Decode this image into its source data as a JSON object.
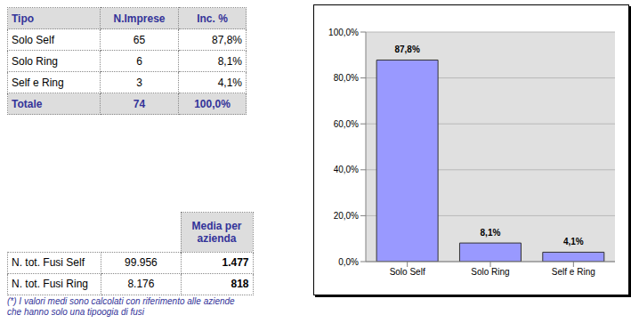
{
  "chart_data": {
    "type": "bar",
    "categories": [
      "Solo Self",
      "Solo Ring",
      "Self e Ring"
    ],
    "values": [
      87.8,
      8.1,
      4.1
    ],
    "value_labels": [
      "87,8%",
      "8,1%",
      "4,1%"
    ],
    "color": "#9999ff",
    "ylim": [
      0,
      100
    ],
    "yticks": [
      {
        "value": 0,
        "label": "0,0%"
      },
      {
        "value": 20,
        "label": "20,0%"
      },
      {
        "value": 40,
        "label": "40,0%"
      },
      {
        "value": 60,
        "label": "60,0%"
      },
      {
        "value": 80,
        "label": "80,0%"
      },
      {
        "value": 100,
        "label": "100,0%"
      }
    ],
    "grid": true,
    "data_labels": true
  },
  "table_imprese": {
    "header": [
      "Tipo",
      "N.Imprese",
      "Inc. %"
    ],
    "rows": [
      [
        "Solo Self",
        "65",
        "87,8%"
      ],
      [
        "Solo Ring",
        "6",
        "8,1%"
      ],
      [
        "Self e Ring",
        "3",
        "4,1%"
      ]
    ],
    "total": [
      "Totale",
      "74",
      "100,0%"
    ]
  },
  "table_fusi": {
    "header": "Media per azienda",
    "rows": [
      [
        "N. tot. Fusi Self",
        "99.956",
        "1.477"
      ],
      [
        "N. tot. Fusi Ring",
        "8.176",
        "818"
      ]
    ]
  },
  "note": [
    "(*) I valori medi sono calcolati con riferimento alle aziende",
    "che hanno solo una tipoogia di fusi"
  ]
}
